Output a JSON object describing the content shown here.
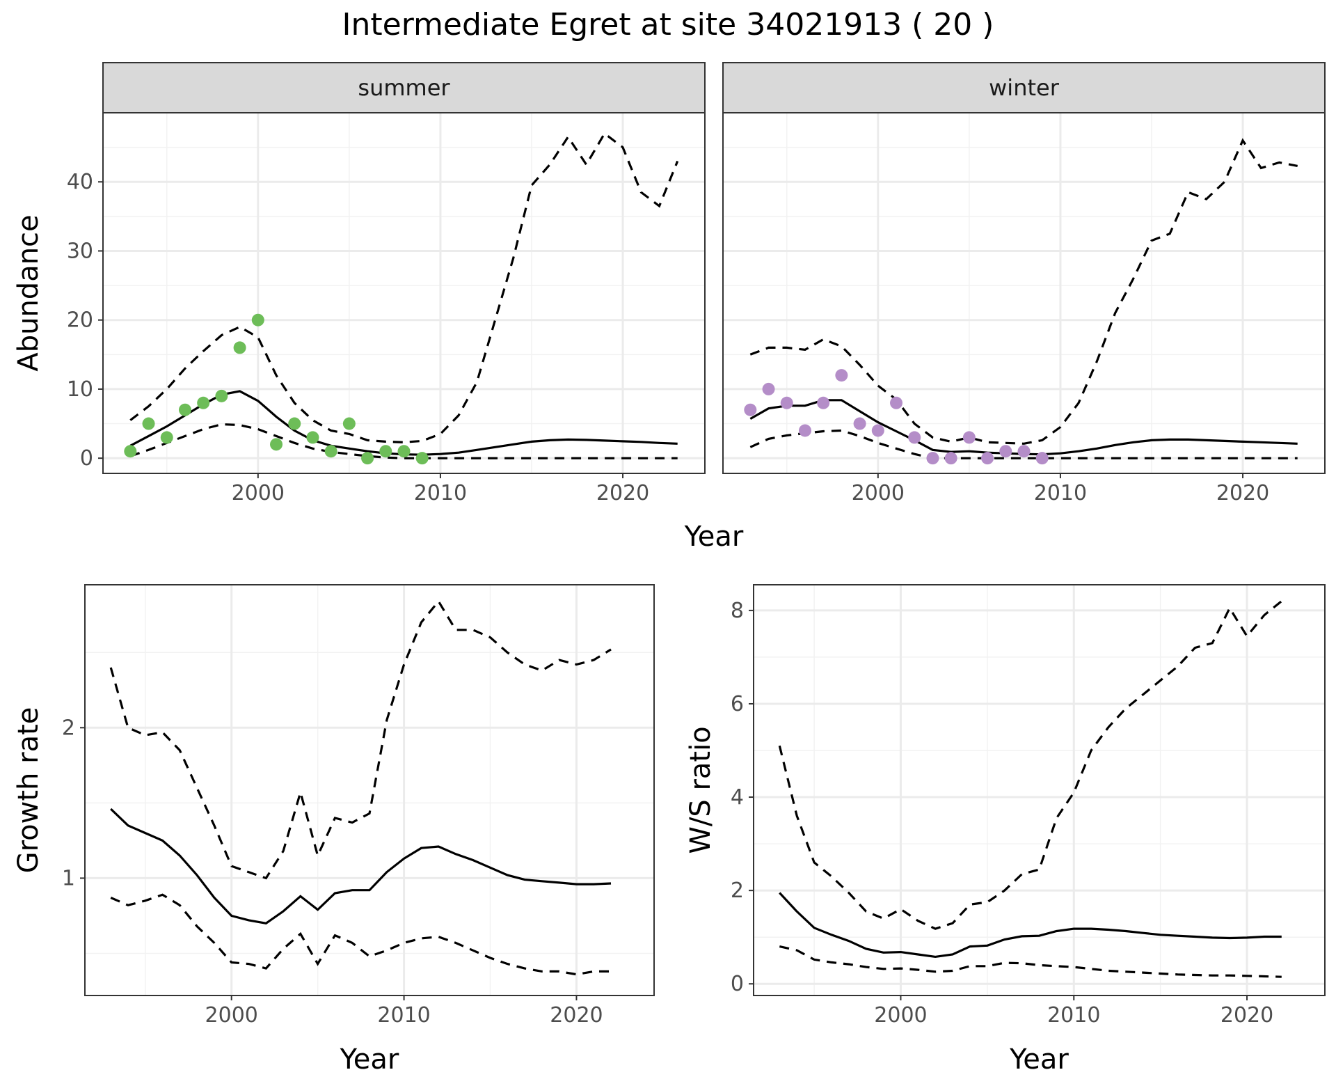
{
  "title": "Intermediate Egret at site 34021913 ( 20 )",
  "colors": {
    "summer_points": "#6dbd58",
    "winter_points": "#b48dc8",
    "lines": "#000000"
  },
  "chart_data": [
    {
      "id": "abundance",
      "type": "line",
      "title": "Intermediate Egret at site 34021913 ( 20 )",
      "xlabel": "Year",
      "ylabel": "Abundance",
      "xlim": [
        1991.5,
        2024.5
      ],
      "ylim": [
        -2.2,
        50
      ],
      "xticks": [
        2000,
        2010,
        2020
      ],
      "yticks": [
        0,
        10,
        20,
        30,
        40
      ],
      "grid": true,
      "facets": [
        {
          "strip": "summer",
          "point_color": "#6dbd58",
          "points": {
            "x": [
              1993,
              1994,
              1995,
              1996,
              1997,
              1998,
              1999,
              2000,
              2001,
              2002,
              2003,
              2004,
              2005,
              2006,
              2007,
              2008,
              2009
            ],
            "y": [
              1,
              5,
              3,
              7,
              8,
              9,
              16,
              20,
              2,
              5,
              3,
              1,
              5,
              0,
              1,
              1,
              0
            ]
          },
          "series": [
            {
              "role": "median",
              "x": [
                1993,
                1994,
                1995,
                1996,
                1997,
                1998,
                1999,
                2000,
                2001,
                2002,
                2003,
                2004,
                2005,
                2006,
                2007,
                2008,
                2009,
                2010,
                2011,
                2012,
                2013,
                2014,
                2015,
                2016,
                2017,
                2018,
                2019,
                2020,
                2021,
                2022,
                2023
              ],
              "y": [
                1.8,
                3.2,
                4.6,
                6.2,
                7.8,
                9.2,
                9.7,
                8.3,
                6.0,
                4.0,
                2.6,
                1.8,
                1.4,
                1.0,
                0.7,
                0.55,
                0.5,
                0.6,
                0.8,
                1.2,
                1.6,
                2.0,
                2.4,
                2.6,
                2.7,
                2.65,
                2.55,
                2.45,
                2.35,
                2.2,
                2.1
              ]
            },
            {
              "role": "upper",
              "x": [
                1993,
                1994,
                1995,
                1996,
                1997,
                1998,
                1999,
                2000,
                2001,
                2002,
                2003,
                2004,
                2005,
                2006,
                2007,
                2008,
                2009,
                2010,
                2011,
                2012,
                2013,
                2014,
                2015,
                2016,
                2017,
                2018,
                2019,
                2020,
                2021,
                2022,
                2023
              ],
              "y": [
                5.5,
                7.5,
                10,
                13,
                15.5,
                17.8,
                19,
                17.5,
                12,
                8,
                5.5,
                4,
                3.5,
                2.6,
                2.4,
                2.3,
                2.5,
                3.5,
                6.2,
                11,
                20,
                29,
                39.5,
                42.5,
                46.5,
                42.5,
                47,
                45,
                38.5,
                36.5,
                43
              ]
            },
            {
              "role": "lower",
              "x": [
                1993,
                1994,
                1995,
                1996,
                1997,
                1998,
                1999,
                2000,
                2001,
                2002,
                2003,
                2004,
                2005,
                2006,
                2007,
                2008,
                2009,
                2010,
                2011,
                2012,
                2013,
                2014,
                2015,
                2016,
                2017,
                2018,
                2019,
                2020,
                2021,
                2022,
                2023
              ],
              "y": [
                0.3,
                1.2,
                2.2,
                3.2,
                4.2,
                4.9,
                4.8,
                4.2,
                3.2,
                2.2,
                1.4,
                0.9,
                0.6,
                0.3,
                0.1,
                0,
                0,
                0,
                0,
                0,
                0,
                0,
                0,
                0,
                0,
                0,
                0,
                0,
                0,
                0,
                0
              ]
            }
          ]
        },
        {
          "strip": "winter",
          "point_color": "#b48dc8",
          "points": {
            "x": [
              1993,
              1994,
              1995,
              1996,
              1997,
              1998,
              1999,
              2000,
              2001,
              2002,
              2003,
              2004,
              2005,
              2006,
              2007,
              2008,
              2009
            ],
            "y": [
              7,
              10,
              8,
              4,
              8,
              12,
              5,
              4,
              8,
              3,
              0,
              0,
              3,
              0,
              1,
              1,
              0
            ]
          },
          "series": [
            {
              "role": "median",
              "x": [
                1993,
                1994,
                1995,
                1996,
                1997,
                1998,
                1999,
                2000,
                2001,
                2002,
                2003,
                2004,
                2005,
                2006,
                2007,
                2008,
                2009,
                2010,
                2011,
                2012,
                2013,
                2014,
                2015,
                2016,
                2017,
                2018,
                2019,
                2020,
                2021,
                2022,
                2023
              ],
              "y": [
                5.7,
                7.2,
                7.6,
                7.6,
                8.4,
                8.4,
                6.8,
                5.2,
                3.9,
                2.6,
                1.2,
                0.9,
                1.0,
                0.8,
                0.7,
                0.6,
                0.55,
                0.7,
                1.0,
                1.4,
                1.9,
                2.3,
                2.6,
                2.7,
                2.7,
                2.6,
                2.5,
                2.4,
                2.3,
                2.2,
                2.1
              ]
            },
            {
              "role": "upper",
              "x": [
                1993,
                1994,
                1995,
                1996,
                1997,
                1998,
                1999,
                2000,
                2001,
                2002,
                2003,
                2004,
                2005,
                2006,
                2007,
                2008,
                2009,
                2010,
                2011,
                2012,
                2013,
                2014,
                2015,
                2016,
                2017,
                2018,
                2019,
                2020,
                2021,
                2022,
                2023
              ],
              "y": [
                15,
                16,
                16,
                15.7,
                17.2,
                16.2,
                13.5,
                10.5,
                8.5,
                5,
                3,
                2.4,
                3,
                2.3,
                2.2,
                2.1,
                2.6,
                4.5,
                8,
                14,
                21,
                26,
                31.5,
                32.5,
                38.5,
                37.5,
                40,
                46,
                42,
                42.8,
                42.3
              ]
            },
            {
              "role": "lower",
              "x": [
                1993,
                1994,
                1995,
                1996,
                1997,
                1998,
                1999,
                2000,
                2001,
                2002,
                2003,
                2004,
                2005,
                2006,
                2007,
                2008,
                2009,
                2010,
                2011,
                2012,
                2013,
                2014,
                2015,
                2016,
                2017,
                2018,
                2019,
                2020,
                2021,
                2022,
                2023
              ],
              "y": [
                1.6,
                2.8,
                3.3,
                3.6,
                3.9,
                4.0,
                3.2,
                2.2,
                1.4,
                0.6,
                0,
                0,
                0,
                0,
                0,
                0,
                0,
                0,
                0,
                0,
                0,
                0,
                0,
                0,
                0,
                0,
                0,
                0,
                0,
                0,
                0
              ]
            }
          ]
        }
      ]
    },
    {
      "id": "growth",
      "type": "line",
      "xlabel": "Year",
      "ylabel": "Growth rate",
      "xlim": [
        1991.5,
        2024.5
      ],
      "ylim": [
        0.22,
        2.95
      ],
      "xticks": [
        2000,
        2010,
        2020
      ],
      "yticks": [
        1,
        2
      ],
      "grid": true,
      "series": [
        {
          "role": "median",
          "x": [
            1993,
            1994,
            1995,
            1996,
            1997,
            1998,
            1999,
            2000,
            2001,
            2002,
            2003,
            2004,
            2005,
            2006,
            2007,
            2008,
            2009,
            2010,
            2011,
            2012,
            2013,
            2014,
            2015,
            2016,
            2017,
            2018,
            2019,
            2020,
            2021,
            2022
          ],
          "y": [
            1.46,
            1.35,
            1.3,
            1.25,
            1.15,
            1.02,
            0.87,
            0.75,
            0.72,
            0.7,
            0.78,
            0.88,
            0.79,
            0.9,
            0.92,
            0.92,
            1.04,
            1.13,
            1.2,
            1.21,
            1.16,
            1.12,
            1.07,
            1.02,
            0.99,
            0.98,
            0.97,
            0.96,
            0.96,
            0.965
          ]
        },
        {
          "role": "upper",
          "x": [
            1993,
            1994,
            1995,
            1996,
            1997,
            1998,
            1999,
            2000,
            2001,
            2002,
            2003,
            2004,
            2005,
            2006,
            2007,
            2008,
            2009,
            2010,
            2011,
            2012,
            2013,
            2014,
            2015,
            2016,
            2017,
            2018,
            2019,
            2020,
            2021,
            2022
          ],
          "y": [
            2.4,
            2.0,
            1.95,
            1.97,
            1.85,
            1.6,
            1.35,
            1.08,
            1.04,
            1.0,
            1.18,
            1.57,
            1.15,
            1.4,
            1.37,
            1.43,
            2.05,
            2.42,
            2.7,
            2.84,
            2.65,
            2.65,
            2.6,
            2.5,
            2.42,
            2.38,
            2.45,
            2.42,
            2.45,
            2.52
          ]
        },
        {
          "role": "lower",
          "x": [
            1993,
            1994,
            1995,
            1996,
            1997,
            1998,
            1999,
            2000,
            2001,
            2002,
            2003,
            2004,
            2005,
            2006,
            2007,
            2008,
            2009,
            2010,
            2011,
            2012,
            2013,
            2014,
            2015,
            2016,
            2017,
            2018,
            2019,
            2020,
            2021,
            2022
          ],
          "y": [
            0.87,
            0.82,
            0.85,
            0.89,
            0.82,
            0.68,
            0.57,
            0.44,
            0.43,
            0.4,
            0.53,
            0.63,
            0.43,
            0.62,
            0.57,
            0.48,
            0.52,
            0.57,
            0.6,
            0.61,
            0.57,
            0.52,
            0.47,
            0.43,
            0.4,
            0.38,
            0.38,
            0.36,
            0.38,
            0.38
          ]
        }
      ]
    },
    {
      "id": "ratio",
      "type": "line",
      "xlabel": "Year",
      "ylabel": "W/S ratio",
      "xlim": [
        1991.5,
        2024.5
      ],
      "ylim": [
        -0.25,
        8.55
      ],
      "xticks": [
        2000,
        2010,
        2020
      ],
      "yticks": [
        0,
        2,
        4,
        6,
        8
      ],
      "grid": true,
      "series": [
        {
          "role": "median",
          "x": [
            1993,
            1994,
            1995,
            1996,
            1997,
            1998,
            1999,
            2000,
            2001,
            2002,
            2003,
            2004,
            2005,
            2006,
            2007,
            2008,
            2009,
            2010,
            2011,
            2012,
            2013,
            2014,
            2015,
            2016,
            2017,
            2018,
            2019,
            2020,
            2021,
            2022
          ],
          "y": [
            1.95,
            1.55,
            1.2,
            1.05,
            0.92,
            0.75,
            0.67,
            0.68,
            0.63,
            0.58,
            0.63,
            0.8,
            0.82,
            0.95,
            1.02,
            1.03,
            1.13,
            1.18,
            1.18,
            1.16,
            1.13,
            1.09,
            1.05,
            1.03,
            1.01,
            0.99,
            0.98,
            0.99,
            1.01,
            1.01
          ]
        },
        {
          "role": "upper",
          "x": [
            1993,
            1994,
            1995,
            1996,
            1997,
            1998,
            1999,
            2000,
            2001,
            2002,
            2003,
            2004,
            2005,
            2006,
            2007,
            2008,
            2009,
            2010,
            2011,
            2012,
            2013,
            2014,
            2015,
            2016,
            2017,
            2018,
            2019,
            2020,
            2021,
            2022
          ],
          "y": [
            5.1,
            3.6,
            2.6,
            2.3,
            1.95,
            1.55,
            1.4,
            1.6,
            1.35,
            1.18,
            1.3,
            1.7,
            1.75,
            2.0,
            2.35,
            2.45,
            3.55,
            4.1,
            5.0,
            5.5,
            5.9,
            6.2,
            6.5,
            6.8,
            7.2,
            7.3,
            8.05,
            7.45,
            7.9,
            8.2
          ]
        },
        {
          "role": "lower",
          "x": [
            1993,
            1994,
            1995,
            1996,
            1997,
            1998,
            1999,
            2000,
            2001,
            2002,
            2003,
            2004,
            2005,
            2006,
            2007,
            2008,
            2009,
            2010,
            2011,
            2012,
            2013,
            2014,
            2015,
            2016,
            2017,
            2018,
            2019,
            2020,
            2021,
            2022
          ],
          "y": [
            0.8,
            0.72,
            0.52,
            0.46,
            0.42,
            0.36,
            0.32,
            0.33,
            0.3,
            0.26,
            0.28,
            0.38,
            0.38,
            0.45,
            0.44,
            0.4,
            0.38,
            0.36,
            0.32,
            0.28,
            0.26,
            0.24,
            0.22,
            0.2,
            0.19,
            0.18,
            0.18,
            0.17,
            0.16,
            0.15
          ]
        }
      ]
    }
  ]
}
